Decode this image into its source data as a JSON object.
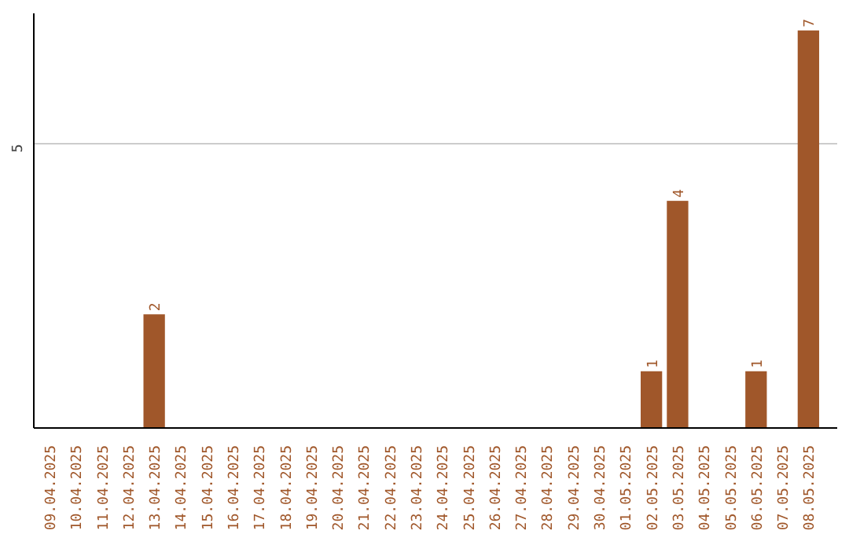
{
  "chart_data": {
    "type": "bar",
    "categories": [
      "09.04.2025",
      "10.04.2025",
      "11.04.2025",
      "12.04.2025",
      "13.04.2025",
      "14.04.2025",
      "15.04.2025",
      "16.04.2025",
      "17.04.2025",
      "18.04.2025",
      "19.04.2025",
      "20.04.2025",
      "21.04.2025",
      "22.04.2025",
      "23.04.2025",
      "24.04.2025",
      "25.04.2025",
      "26.04.2025",
      "27.04.2025",
      "28.04.2025",
      "29.04.2025",
      "30.04.2025",
      "01.05.2025",
      "02.05.2025",
      "03.05.2025",
      "04.05.2025",
      "05.05.2025",
      "06.05.2025",
      "07.05.2025",
      "08.05.2025"
    ],
    "values": [
      0,
      0,
      0,
      0,
      2,
      0,
      0,
      0,
      0,
      0,
      0,
      0,
      0,
      0,
      0,
      0,
      0,
      0,
      0,
      0,
      0,
      0,
      0,
      1,
      4,
      0,
      0,
      1,
      0,
      7
    ],
    "value_labels": [
      null,
      null,
      null,
      null,
      "2",
      null,
      null,
      null,
      null,
      null,
      null,
      null,
      null,
      null,
      null,
      null,
      null,
      null,
      null,
      null,
      null,
      null,
      null,
      "1",
      "4",
      null,
      null,
      "1",
      null,
      "7"
    ],
    "color": "#a0572a",
    "ylim": [
      0,
      7.3
    ],
    "yticks": [
      5
    ],
    "grid": "y"
  }
}
